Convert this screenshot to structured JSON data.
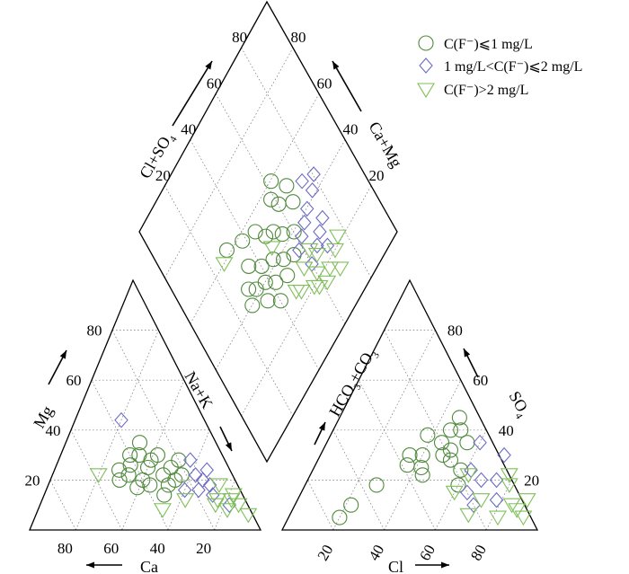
{
  "chart_data": {
    "type": "scatter",
    "title": "",
    "colors": {
      "group1": "#4f8a3c",
      "group2": "#6b6bc4",
      "group3": "#7fbf5a"
    },
    "legend": {
      "position": "top-right",
      "entries": [
        {
          "series": "group1",
          "marker": "circle",
          "label": "C(F⁻)⩽1 mg/L"
        },
        {
          "series": "group2",
          "marker": "diamond",
          "label": "1 mg/L<C(F⁻)⩽2 mg/L"
        },
        {
          "series": "group3",
          "marker": "triangle-down",
          "label": "C(F⁻)>2 mg/L"
        }
      ]
    },
    "axes": {
      "cation_ticks": {
        "Mg": [
          "20",
          "40",
          "60",
          "80"
        ],
        "Ca": [
          "80",
          "60",
          "40",
          "20"
        ]
      },
      "anion_ticks": {
        "Cl": [
          "20",
          "40",
          "60",
          "80"
        ],
        "SO4": [
          "20",
          "40",
          "60",
          "80"
        ]
      },
      "diamond_ticks": {
        "Cl_SO4": [
          "20",
          "40",
          "60",
          "80"
        ],
        "Ca_Mg": [
          "20",
          "40",
          "60",
          "80"
        ]
      },
      "labels": {
        "mg": "Mg",
        "ca": "Ca",
        "nak_main": "Na+K",
        "cl": "Cl",
        "so4_main": "SO",
        "so4_sub": "4",
        "hco3_a": "HCO",
        "hco3_sub1": "3",
        "hco3_b": "+CO",
        "hco3_sub2": "3",
        "clso4_a": "Cl+SO",
        "clso4_sub": "4",
        "camg_main": "Ca+Mg"
      }
    },
    "series": [
      {
        "name": "C(F⁻)⩽1 mg/L",
        "cations": [
          [
            30,
            22
          ],
          [
            35,
            25
          ],
          [
            40,
            20
          ],
          [
            32,
            28
          ],
          [
            45,
            22
          ],
          [
            25,
            25
          ],
          [
            28,
            30
          ],
          [
            38,
            18
          ],
          [
            42,
            26
          ],
          [
            50,
            20
          ],
          [
            33,
            35
          ],
          [
            30,
            18
          ],
          [
            22,
            22
          ],
          [
            36,
            30
          ],
          [
            44,
            17
          ],
          [
            40,
            30
          ],
          [
            48,
            24
          ],
          [
            20,
            28
          ],
          [
            26,
            20
          ],
          [
            34,
            14
          ]
        ],
        "anions": [
          [
            40,
            30
          ],
          [
            45,
            35
          ],
          [
            50,
            32
          ],
          [
            48,
            30
          ],
          [
            42,
            25
          ],
          [
            38,
            38
          ],
          [
            52,
            28
          ],
          [
            46,
            40
          ],
          [
            35,
            30
          ],
          [
            50,
            40
          ],
          [
            55,
            35
          ],
          [
            44,
            22
          ],
          [
            60,
            18
          ],
          [
            28,
            18
          ],
          [
            22,
            10
          ],
          [
            20,
            5
          ],
          [
            58,
            24
          ],
          [
            36,
            26
          ],
          [
            47,
            45
          ]
        ],
        "diamond": [
          [
            35,
            35
          ],
          [
            40,
            38
          ],
          [
            45,
            40
          ],
          [
            38,
            50
          ],
          [
            42,
            46
          ],
          [
            48,
            52
          ],
          [
            40,
            60
          ],
          [
            52,
            60
          ],
          [
            45,
            30
          ],
          [
            55,
            45
          ],
          [
            50,
            35
          ],
          [
            44,
            55
          ],
          [
            36,
            42
          ],
          [
            50,
            48
          ],
          [
            42,
            33
          ],
          [
            62,
            30
          ],
          [
            58,
            38
          ],
          [
            40,
            28
          ],
          [
            56,
            58
          ],
          [
            30,
            40
          ],
          [
            33,
            48
          ],
          [
            60,
            62
          ],
          [
            47,
            66
          ],
          [
            35,
            55
          ],
          [
            53,
            67
          ]
        ]
      },
      {
        "name": "1 mg/L<C(F⁻)⩽2 mg/L",
        "cations": [
          [
            14,
            20
          ],
          [
            12,
            18
          ],
          [
            10,
            24
          ],
          [
            16,
            22
          ],
          [
            18,
            16
          ],
          [
            8,
            10
          ],
          [
            15,
            28
          ],
          [
            36,
            44
          ],
          [
            24,
            16
          ],
          [
            13,
            14
          ]
        ],
        "anions": [
          [
            68,
            20
          ],
          [
            62,
            24
          ],
          [
            72,
            30
          ],
          [
            65,
            15
          ],
          [
            70,
            10
          ],
          [
            74,
            20
          ],
          [
            78,
            12
          ],
          [
            60,
            35
          ]
        ],
        "diamond": [
          [
            30,
            70
          ],
          [
            28,
            66
          ],
          [
            36,
            62
          ],
          [
            34,
            58
          ],
          [
            40,
            70
          ],
          [
            42,
            76
          ],
          [
            32,
            74
          ],
          [
            26,
            60
          ],
          [
            45,
            80
          ],
          [
            38,
            66
          ],
          [
            48,
            74
          ],
          [
            24,
            70
          ]
        ]
      },
      {
        "name": "C(F⁻)>2 mg/L",
        "cations": [
          [
            8,
            18
          ],
          [
            6,
            12
          ],
          [
            4,
            10
          ],
          [
            10,
            8
          ],
          [
            12,
            12
          ],
          [
            2,
            6
          ],
          [
            14,
            10
          ],
          [
            58,
            22
          ],
          [
            38,
            8
          ],
          [
            26,
            12
          ],
          [
            4,
            14
          ]
        ],
        "anions": [
          [
            80,
            18
          ],
          [
            85,
            10
          ],
          [
            82,
            5
          ],
          [
            78,
            22
          ],
          [
            72,
            12
          ],
          [
            62,
            22
          ],
          [
            70,
            6
          ],
          [
            90,
            12
          ],
          [
            88,
            8
          ],
          [
            92,
            5
          ],
          [
            60,
            15
          ]
        ],
        "diamond": [
          [
            22,
            60
          ],
          [
            24,
            50
          ],
          [
            20,
            56
          ],
          [
            26,
            64
          ],
          [
            18,
            66
          ],
          [
            28,
            56
          ],
          [
            20,
            72
          ],
          [
            30,
            62
          ],
          [
            22,
            76
          ],
          [
            14,
            70
          ],
          [
            18,
            58
          ],
          [
            26,
            48
          ],
          [
            45,
            48
          ],
          [
            60,
            26
          ],
          [
            16,
            62
          ]
        ]
      }
    ]
  }
}
